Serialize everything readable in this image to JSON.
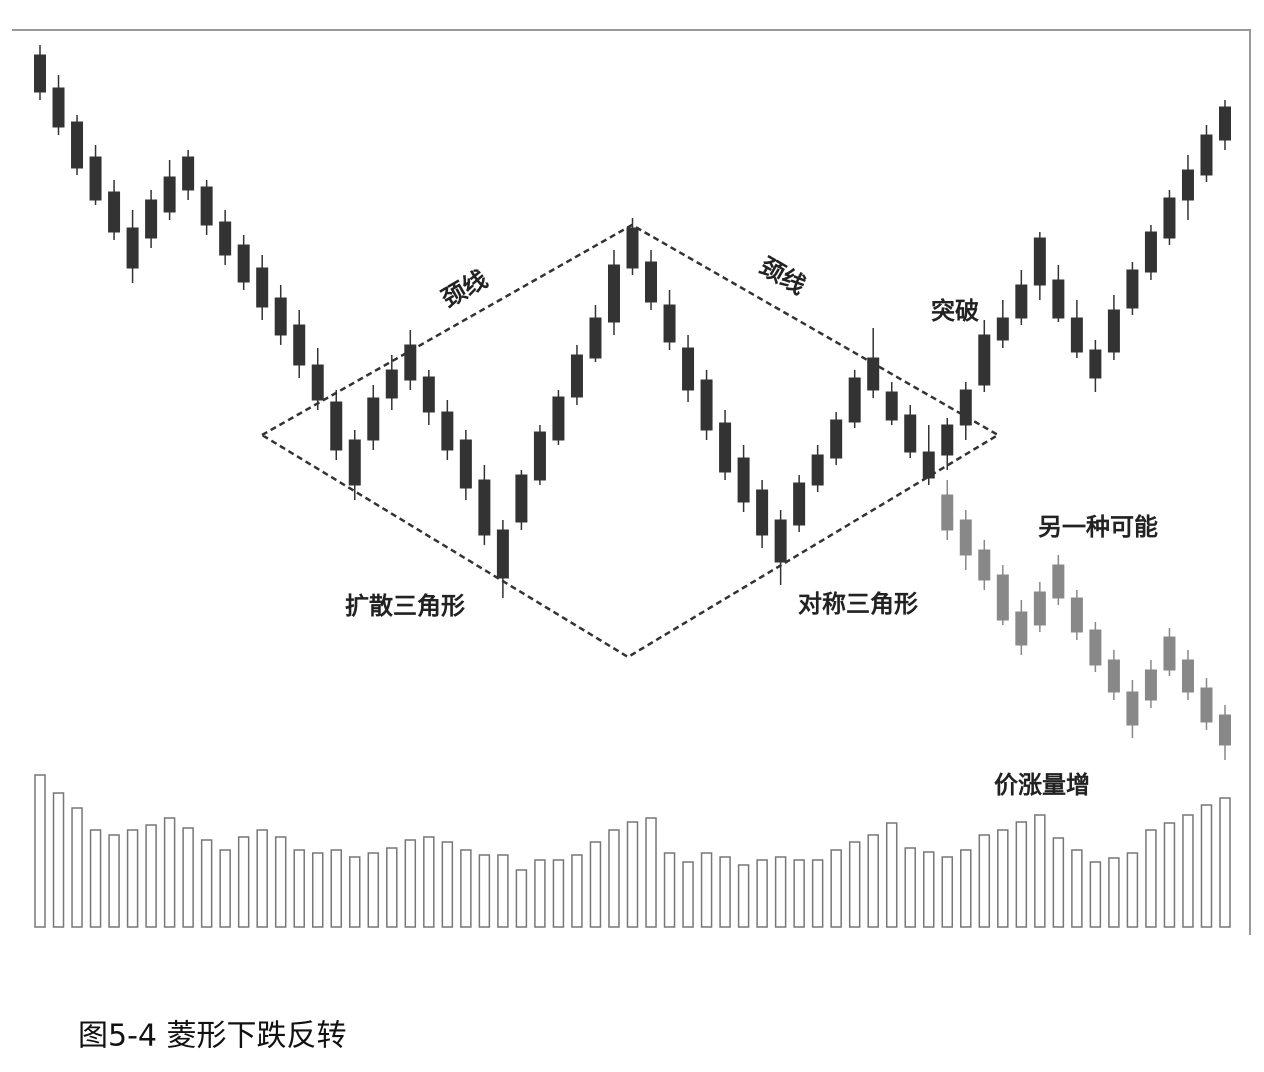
{
  "chart_data": {
    "type": "candlestick",
    "title": "图5-4 菱形下跌反转",
    "annotations": [
      "颈线",
      "颈线",
      "突破",
      "另一种可能",
      "扩散三角形",
      "对称三角形",
      "价涨量增"
    ],
    "ylim": [
      70,
      970
    ],
    "color": "#333333",
    "candles": {
      "open": [
        945,
        912,
        878,
        843,
        808,
        772,
        762,
        788,
        810,
        813,
        778,
        755,
        732,
        702,
        675,
        635,
        598,
        560,
        560,
        602,
        620,
        623,
        588,
        560,
        520,
        470,
        478,
        520,
        560,
        603,
        642,
        678,
        732,
        738,
        695,
        652,
        620,
        577,
        542,
        510,
        480,
        475,
        515,
        542,
        578,
        610,
        608,
        585,
        548,
        545,
        575,
        615,
        660,
        682,
        715,
        720,
        682,
        650,
        648,
        692,
        728,
        762,
        800,
        825,
        860
      ],
      "high": [
        955,
        925,
        885,
        855,
        820,
        790,
        810,
        840,
        850,
        820,
        790,
        765,
        745,
        715,
        690,
        652,
        610,
        570,
        615,
        645,
        670,
        630,
        600,
        570,
        535,
        480,
        530,
        575,
        610,
        655,
        695,
        750,
        782,
        750,
        710,
        665,
        630,
        590,
        555,
        520,
        490,
        525,
        555,
        588,
        630,
        672,
        618,
        595,
        575,
        582,
        618,
        680,
        700,
        730,
        768,
        735,
        700,
        660,
        705,
        738,
        775,
        810,
        845,
        875,
        900
      ],
      "low": [
        900,
        865,
        825,
        795,
        760,
        717,
        752,
        780,
        800,
        765,
        735,
        710,
        680,
        655,
        622,
        590,
        540,
        500,
        550,
        590,
        610,
        575,
        540,
        500,
        455,
        402,
        470,
        515,
        555,
        595,
        638,
        665,
        725,
        690,
        650,
        598,
        560,
        520,
        488,
        452,
        415,
        468,
        508,
        535,
        572,
        602,
        575,
        542,
        515,
        530,
        560,
        608,
        652,
        675,
        700,
        678,
        642,
        608,
        640,
        685,
        720,
        755,
        780,
        818,
        850
      ],
      "close": [
        908,
        873,
        832,
        800,
        768,
        732,
        800,
        823,
        843,
        775,
        745,
        718,
        693,
        665,
        635,
        600,
        550,
        515,
        602,
        630,
        655,
        588,
        550,
        512,
        465,
        422,
        525,
        568,
        603,
        645,
        682,
        735,
        772,
        698,
        658,
        610,
        570,
        528,
        498,
        465,
        438,
        517,
        545,
        580,
        622,
        642,
        580,
        548,
        522,
        575,
        610,
        665,
        682,
        715,
        762,
        682,
        648,
        622,
        690,
        730,
        768,
        802,
        830,
        865,
        893
      ]
    },
    "alternative": {
      "color": "#888888",
      "open": [
        null,
        null,
        null,
        null,
        null,
        null,
        null,
        null,
        null,
        null,
        null,
        null,
        null,
        null,
        null,
        null,
        null,
        null,
        null,
        null,
        null,
        null,
        null,
        null,
        null,
        null,
        null,
        null,
        null,
        null,
        null,
        null,
        null,
        null,
        null,
        null,
        null,
        null,
        null,
        null,
        null,
        null,
        null,
        null,
        null,
        null,
        null,
        null,
        null,
        505,
        480,
        450,
        425,
        388,
        375,
        402,
        402,
        370,
        340,
        308,
        300,
        330,
        340,
        312,
        285
      ],
      "high": [
        null,
        null,
        null,
        null,
        null,
        null,
        null,
        null,
        null,
        null,
        null,
        null,
        null,
        null,
        null,
        null,
        null,
        null,
        null,
        null,
        null,
        null,
        null,
        null,
        null,
        null,
        null,
        null,
        null,
        null,
        null,
        null,
        null,
        null,
        null,
        null,
        null,
        null,
        null,
        null,
        null,
        null,
        null,
        null,
        null,
        null,
        null,
        null,
        null,
        520,
        490,
        460,
        435,
        400,
        418,
        445,
        410,
        378,
        350,
        320,
        340,
        372,
        350,
        322,
        295
      ],
      "low": [
        null,
        null,
        null,
        null,
        null,
        null,
        null,
        null,
        null,
        null,
        null,
        null,
        null,
        null,
        null,
        null,
        null,
        null,
        null,
        null,
        null,
        null,
        null,
        null,
        null,
        null,
        null,
        null,
        null,
        null,
        null,
        null,
        null,
        null,
        null,
        null,
        null,
        null,
        null,
        null,
        null,
        null,
        null,
        null,
        null,
        null,
        null,
        null,
        null,
        460,
        430,
        410,
        375,
        345,
        368,
        395,
        360,
        328,
        300,
        262,
        292,
        324,
        300,
        270,
        240
      ],
      "close": [
        null,
        null,
        null,
        null,
        null,
        null,
        null,
        null,
        null,
        null,
        null,
        null,
        null,
        null,
        null,
        null,
        null,
        null,
        null,
        null,
        null,
        null,
        null,
        null,
        null,
        null,
        null,
        null,
        null,
        null,
        null,
        null,
        null,
        null,
        null,
        null,
        null,
        null,
        null,
        null,
        null,
        null,
        null,
        null,
        null,
        null,
        null,
        null,
        null,
        470,
        445,
        420,
        380,
        355,
        408,
        435,
        368,
        335,
        308,
        275,
        330,
        363,
        308,
        278,
        255
      ]
    },
    "volume": [
      152,
      134,
      119,
      97,
      92,
      97,
      102,
      109,
      99,
      87,
      77,
      90,
      97,
      90,
      77,
      74,
      77,
      70,
      74,
      79,
      87,
      90,
      85,
      77,
      72,
      72,
      57,
      67,
      67,
      72,
      85,
      97,
      105,
      109,
      74,
      65,
      74,
      70,
      62,
      67,
      70,
      67,
      67,
      77,
      85,
      92,
      104,
      79,
      75,
      70,
      77,
      92,
      97,
      105,
      112,
      89,
      77,
      65,
      69,
      74,
      97,
      104,
      112,
      122,
      129
    ],
    "volume_ylim": [
      0,
      160
    ],
    "volume_color": "#777777"
  }
}
